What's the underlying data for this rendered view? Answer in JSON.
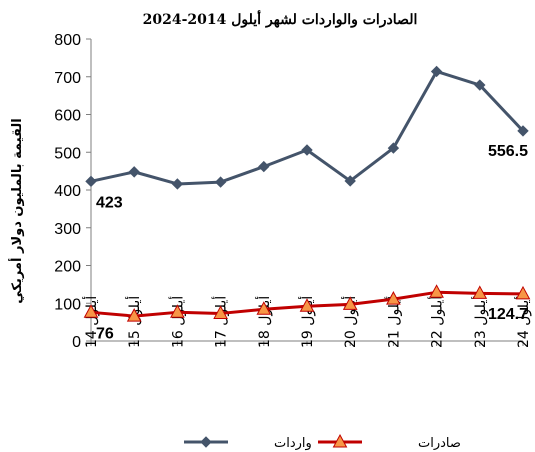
{
  "chart_data": {
    "type": "line",
    "title": "الصادرات والواردات لشهر أيلول 2014-2024",
    "ylabel": "القيمة بالمليون دولار أمريكي",
    "xlabel": "",
    "ylim": [
      0,
      800
    ],
    "yticks": [
      0,
      100,
      200,
      300,
      400,
      500,
      600,
      700,
      800
    ],
    "grid": false,
    "legend_position": "bottom",
    "categories": [
      "أيلول 14",
      "أيلول 15",
      "أيلول 16",
      "أيلول 17",
      "أيلول 18",
      "أيلول 19",
      "أيلول 20",
      "أيلول 21",
      "أيلول 22",
      "أيلول 23",
      "أيلول 24"
    ],
    "series": [
      {
        "name": "واردات",
        "color": "#44546A",
        "marker": "diamond",
        "values": [
          423,
          448,
          416,
          421,
          462,
          506,
          424,
          511,
          714,
          678,
          556.5
        ],
        "labels": [
          {
            "index": 0,
            "text": "423"
          },
          {
            "index": 10,
            "text": "556.5"
          }
        ]
      },
      {
        "name": "صادرات",
        "color": "#C00000",
        "marker": "triangle",
        "marker_fill": "#F79646",
        "values": [
          76,
          66,
          76,
          73,
          84,
          92,
          97,
          111,
          129,
          126,
          124.7
        ],
        "labels": [
          {
            "index": 0,
            "text": "76"
          },
          {
            "index": 10,
            "text": "124.7"
          }
        ]
      }
    ]
  }
}
